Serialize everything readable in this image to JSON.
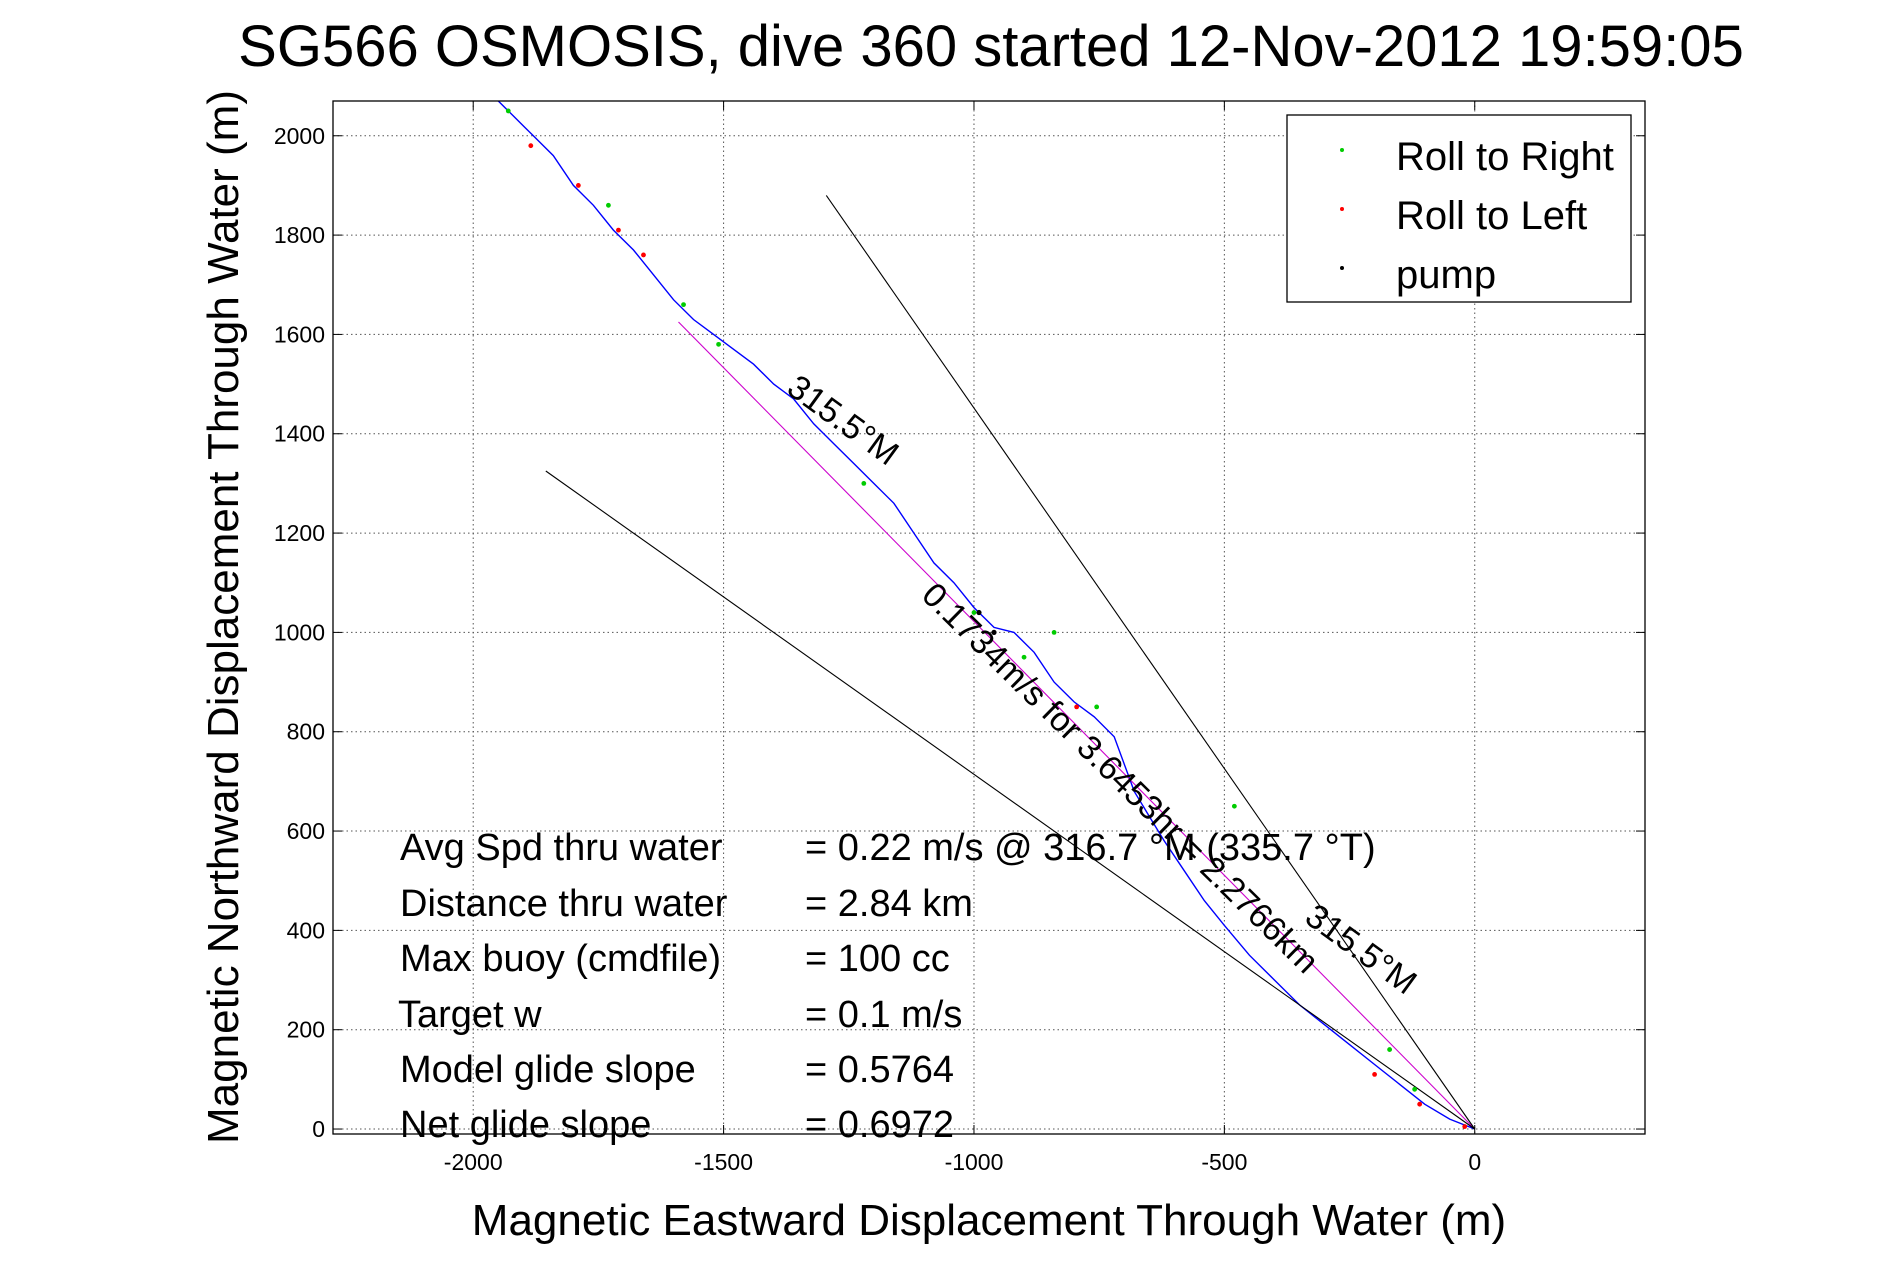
{
  "chart_data": {
    "type": "line",
    "title": "SG566 OSMOSIS, dive 360 started 12-Nov-2012 19:59:05",
    "xlabel": "Magnetic Eastward Displacement Through Water (m)",
    "ylabel": "Magnetic Northward Displacement Through Water (m)",
    "xlim": [
      -2280,
      340
    ],
    "ylim": [
      -10,
      2070
    ],
    "xticks": [
      -2000,
      -1500,
      -1000,
      -500,
      0
    ],
    "yticks": [
      0,
      200,
      400,
      600,
      800,
      1000,
      1200,
      1400,
      1600,
      1800,
      2000
    ],
    "grid": true,
    "legend_position": "top-right",
    "legend": [
      {
        "label": "Roll to Right",
        "color": "#00cc00"
      },
      {
        "label": "Roll to Left",
        "color": "#ff0000"
      },
      {
        "label": "pump",
        "color": "#000000"
      }
    ],
    "series": [
      {
        "name": "track",
        "color": "#0000ff",
        "x": [
          0,
          -50,
          -100,
          -150,
          -200,
          -250,
          -300,
          -350,
          -400,
          -450,
          -500,
          -540,
          -580,
          -620,
          -650,
          -680,
          -720,
          -760,
          -800,
          -840,
          -880,
          -920,
          -960,
          -1000,
          -1040,
          -1080,
          -1120,
          -1160,
          -1200,
          -1240,
          -1280,
          -1320,
          -1360,
          -1400,
          -1440,
          -1480,
          -1520,
          -1560,
          -1600,
          -1640,
          -1680,
          -1720,
          -1760,
          -1800,
          -1840,
          -1880,
          -1920,
          -1950
        ],
        "y": [
          0,
          20,
          50,
          90,
          130,
          170,
          210,
          250,
          300,
          350,
          410,
          460,
          520,
          580,
          630,
          680,
          790,
          830,
          860,
          900,
          960,
          1000,
          1010,
          1050,
          1100,
          1140,
          1200,
          1260,
          1300,
          1340,
          1380,
          1420,
          1470,
          1500,
          1540,
          1570,
          1600,
          1630,
          1670,
          1720,
          1770,
          1810,
          1860,
          1900,
          1960,
          2000,
          2040,
          2070
        ]
      },
      {
        "name": "net-displacement",
        "color": "#cc00cc",
        "x": [
          0,
          -1590
        ],
        "y": [
          0,
          1625
        ]
      },
      {
        "name": "heading-line-1",
        "color": "#000000",
        "x": [
          0,
          -1295
        ],
        "y": [
          0,
          1880
        ]
      },
      {
        "name": "heading-line-2",
        "color": "#000000",
        "x": [
          0,
          -1855
        ],
        "y": [
          0,
          1325
        ]
      }
    ],
    "roll_right_points": {
      "x": [
        -1930,
        -1730,
        -1580,
        -1510,
        -1220,
        -1000,
        -900,
        -840,
        -755,
        -480,
        -170,
        -120
      ],
      "y": [
        2050,
        1860,
        1660,
        1580,
        1300,
        1040,
        950,
        1000,
        850,
        650,
        160,
        80
      ]
    },
    "roll_left_points": {
      "x": [
        -1885,
        -1710,
        -1790,
        -1660,
        -795,
        -200,
        -110,
        -20
      ],
      "y": [
        1980,
        1810,
        1900,
        1760,
        850,
        110,
        50,
        5
      ]
    },
    "pump_points": {
      "x": [
        -990,
        -960
      ],
      "y": [
        1040,
        1000
      ]
    },
    "annotations": {
      "heading_label_1": "315.5°M",
      "heading_label_2": "315.5°M",
      "current_label": "0.1734m/s for 3.6453hr = 2.2766km"
    },
    "stats": {
      "labels": [
        "Avg Spd thru water",
        "Distance thru water",
        "Max buoy (cmdfile)",
        "Target w",
        "Model glide slope",
        "Net glide slope"
      ],
      "values": [
        "=  0.22 m/s @ 316.7 °M (335.7 °T)",
        "=  2.84 km",
        "= 100 cc",
        "= 0.1 m/s",
        "= 0.5764",
        "= 0.6972"
      ]
    }
  }
}
